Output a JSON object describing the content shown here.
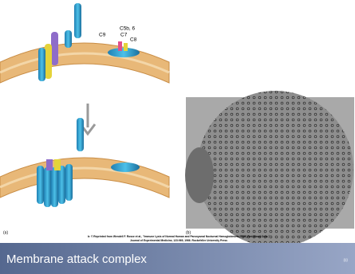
{
  "figure": {
    "labels": [
      "C5b, 6",
      "C9",
      "C7",
      "C8"
    ],
    "panel_a": "(a)",
    "panel_b": "(b)",
    "credit": [
      "b: © Reprinted from Wendell F. Rosse et al., \"Immune Lysis of Normal Human and Paroxysmal Nocturnal Hemoglobinuria (PNH) Red Blood Cells,\"",
      "Journal of Experimental Medicine, 123:969, 1966. Rockefeller University Press"
    ]
  },
  "footer": {
    "title": "Membrane attack complex",
    "page_number": "88"
  }
}
